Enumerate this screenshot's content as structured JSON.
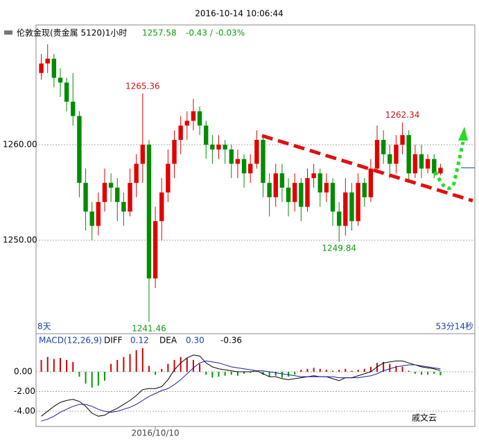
{
  "header": {
    "datetime": "2016-10-14 10:06:44",
    "symbol": "伦敦金现(贵金属 5120)1小时",
    "last": "1257.58",
    "change": "-0.43 / -0.03%"
  },
  "chart_data": [
    {
      "type": "candlestick",
      "categories": [
        null,
        null,
        null,
        null,
        null,
        null,
        null,
        null,
        null,
        null,
        null,
        null,
        null,
        null,
        null,
        null,
        null,
        null,
        "2016/10/10",
        null,
        null,
        null,
        null,
        null,
        null,
        null,
        null,
        null,
        null,
        null,
        null,
        null,
        null,
        null,
        null,
        null,
        null,
        null,
        null,
        null,
        null,
        null,
        null,
        null,
        null,
        null,
        null,
        null,
        null,
        null,
        null,
        null,
        null,
        null,
        null,
        null,
        null,
        null,
        null,
        null,
        null,
        null,
        null,
        null
      ],
      "open": [
        1267.5,
        1268.5,
        1269,
        1267,
        1266.5,
        1264.5,
        1263,
        1256,
        1253,
        1251.5,
        1254,
        1256,
        1255.5,
        1254,
        1253,
        1256,
        1258,
        1260,
        1246,
        1252,
        1255,
        1258,
        1260.5,
        1262,
        1262.5,
        1263.5,
        1262,
        1260,
        1259.5,
        1260,
        1259.5,
        1258,
        1258.5,
        1257,
        1258,
        1260.5,
        1256,
        1254.5,
        1257,
        1255.5,
        1254,
        1256,
        1253.5,
        1256.5,
        1257,
        1255,
        1256,
        1253,
        1251.5,
        1255,
        1252,
        1256,
        1254.5,
        1257.5,
        1260.5,
        1259,
        1258,
        1260,
        1261,
        1257,
        1259,
        1257.5,
        1258.5,
        1257
      ],
      "high": [
        1269.5,
        1270.5,
        1269.5,
        1268,
        1267,
        1267.5,
        1263.5,
        1257.5,
        1254,
        1255,
        1257.5,
        1257,
        1256.5,
        1255,
        1257.5,
        1259,
        1265.36,
        1260.5,
        1253.5,
        1256.5,
        1259.5,
        1261.5,
        1263,
        1263.5,
        1264.8,
        1264,
        1262.5,
        1261,
        1261,
        1260.5,
        1260,
        1259.5,
        1259,
        1259,
        1261.5,
        1261,
        1257,
        1258,
        1258,
        1256.5,
        1257,
        1256.5,
        1257.5,
        1258,
        1257.5,
        1257,
        1256.5,
        1254,
        1256.5,
        1256,
        1257,
        1256.5,
        1258.5,
        1262,
        1261.5,
        1260,
        1261,
        1262.34,
        1261.5,
        1260,
        1260,
        1259,
        1259,
        1258
      ],
      "low": [
        1266.8,
        1267.5,
        1266,
        1265,
        1263.5,
        1262,
        1254.5,
        1251,
        1250,
        1250.5,
        1253,
        1254,
        1252,
        1251.5,
        1252.5,
        1254.5,
        1256,
        1241.46,
        1245,
        1250,
        1254,
        1256.5,
        1259,
        1260.5,
        1261.5,
        1261,
        1258.5,
        1258,
        1258.5,
        1258,
        1256.5,
        1256.5,
        1255.5,
        1256,
        1257.5,
        1254.5,
        1252.5,
        1253.5,
        1254,
        1252.5,
        1253,
        1252,
        1253,
        1255.5,
        1253.5,
        1254,
        1251.5,
        1249.84,
        1250.5,
        1251,
        1251.5,
        1253.5,
        1254,
        1257,
        1258,
        1256.5,
        1257,
        1259,
        1256,
        1256.5,
        1256.5,
        1257,
        1256.5,
        1256.8
      ],
      "close": [
        1268.5,
        1269,
        1267,
        1266.5,
        1264.5,
        1263,
        1256,
        1253,
        1251.5,
        1254,
        1256,
        1255.5,
        1254,
        1253,
        1256,
        1258,
        1260,
        1246,
        1252,
        1255,
        1258,
        1260.5,
        1262,
        1262.5,
        1263.5,
        1262,
        1260,
        1259.5,
        1260,
        1259.5,
        1258,
        1258.5,
        1257,
        1258,
        1260.5,
        1256,
        1254.5,
        1257,
        1255.5,
        1254,
        1256,
        1253.5,
        1256.5,
        1257,
        1255,
        1256,
        1253,
        1251.5,
        1255,
        1252,
        1256,
        1254.5,
        1257.5,
        1260.5,
        1259,
        1258,
        1260,
        1261,
        1257,
        1259,
        1257.5,
        1258.5,
        1257,
        1257.58
      ],
      "up_color": "#e00000",
      "down_color": "#008c00",
      "ylim": [
        1240.36,
        1272.39
      ],
      "yticks": [
        {
          "value": 1250,
          "label": "1250.00"
        },
        {
          "value": 1260,
          "label": "1260.00"
        }
      ],
      "grid": true,
      "annotations": [
        "1265.36",
        "1262.34",
        "1249.84",
        "1241.46"
      ],
      "footer_left": "8天",
      "footer_right": "53分14秒"
    },
    {
      "type": "macd",
      "title": "MACD(12,26,9)",
      "series": [
        {
          "name": "DIFF",
          "color": "#000000",
          "readout": "0.12",
          "values": [
            -4.5,
            -4.0,
            -3.5,
            -3.1,
            -2.9,
            -2.8,
            -3.0,
            -3.5,
            -4.2,
            -4.5,
            -4.4,
            -4.0,
            -3.7,
            -3.3,
            -2.9,
            -2.4,
            -1.8,
            -1.7,
            -1.7,
            -1.5,
            -0.8,
            0.2,
            0.9,
            1.4,
            1.7,
            1.6,
            0.9,
            0.5,
            0.3,
            0.2,
            0.1,
            0.0,
            0.0,
            0.0,
            0.1,
            -0.2,
            -0.5,
            -0.5,
            -0.7,
            -0.8,
            -0.7,
            -0.6,
            -0.5,
            -0.4,
            -0.5,
            -0.5,
            -0.7,
            -0.9,
            -0.6,
            -0.6,
            -0.4,
            -0.2,
            0.0,
            0.5,
            0.9,
            1.0,
            1.1,
            1.1,
            0.9,
            0.7,
            0.5,
            0.4,
            0.3,
            0.12
          ]
        },
        {
          "name": "DEA",
          "color": "#1a1aa0",
          "readout": "0.30",
          "values": [
            -5.0,
            -4.8,
            -4.5,
            -4.1,
            -3.8,
            -3.5,
            -3.3,
            -3.3,
            -3.5,
            -3.8,
            -4.0,
            -4.1,
            -4.0,
            -3.8,
            -3.6,
            -3.3,
            -2.9,
            -2.5,
            -2.2,
            -1.9,
            -1.7,
            -1.3,
            -0.8,
            -0.2,
            0.4,
            0.9,
            1.1,
            1.0,
            0.9,
            0.7,
            0.5,
            0.4,
            0.3,
            0.2,
            0.1,
            0.1,
            0.0,
            -0.1,
            -0.2,
            -0.3,
            -0.4,
            -0.5,
            -0.5,
            -0.5,
            -0.5,
            -0.5,
            -0.5,
            -0.6,
            -0.6,
            -0.6,
            -0.6,
            -0.5,
            -0.4,
            -0.2,
            0.1,
            0.3,
            0.5,
            0.6,
            0.7,
            0.7,
            0.6,
            0.5,
            0.4,
            0.3
          ]
        }
      ],
      "histogram": {
        "readout": "-0.36",
        "positive_color": "#cc0000",
        "negative_color": "#009900",
        "values": [
          1.2,
          1.5,
          1.3,
          1.4,
          1.2,
          1.0,
          -0.5,
          -1.2,
          -1.6,
          -1.4,
          -0.9,
          0.8,
          1.2,
          1.5,
          1.8,
          2.2,
          2.4,
          0.6,
          -0.3,
          0.3,
          0.8,
          1.2,
          1.5,
          1.4,
          1.2,
          0.8,
          -0.3,
          -0.6,
          -0.5,
          -0.4,
          -0.3,
          -0.4,
          -0.2,
          -0.1,
          0.1,
          -0.3,
          -0.5,
          -0.4,
          -0.6,
          -0.5,
          -0.3,
          0.2,
          0.3,
          0.4,
          0.3,
          0.2,
          0.1,
          0.2,
          0.3,
          0.1,
          0.2,
          0.3,
          0.5,
          0.9,
          1.0,
          0.8,
          0.6,
          0.5,
          0.1,
          -0.2,
          -0.3,
          -0.3,
          -0.2,
          -0.36
        ]
      },
      "ylim": [
        -5.47,
        3.79
      ],
      "yticks": [
        {
          "value": 0,
          "label": "0.00"
        },
        {
          "value": -2,
          "label": "-2.00"
        },
        {
          "value": -4,
          "label": "-4.00"
        }
      ],
      "grid": true
    }
  ],
  "watermark": "戚文云"
}
